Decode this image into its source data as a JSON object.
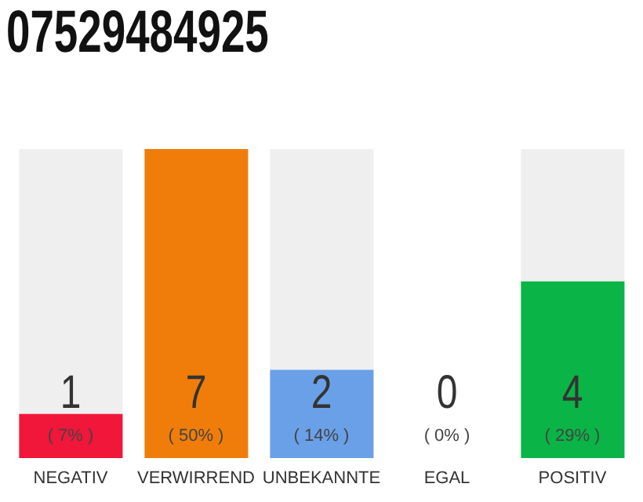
{
  "chart_data": {
    "type": "bar",
    "title": "07529484925",
    "categories": [
      "NEGATIV",
      "VERWIRREND",
      "UNBEKANNTE",
      "EGAL",
      "POSITIV"
    ],
    "values": [
      1,
      7,
      2,
      0,
      4
    ],
    "colors": [
      "#f0173a",
      "#f07d0a",
      "#6aa0e8",
      "#a0a0a0",
      "#0ab446"
    ],
    "value_labels": [
      "1",
      "7",
      "2",
      "0",
      "4"
    ],
    "annotations": [
      "( 7% )",
      "( 50% )",
      "( 14% )",
      "( 0% )",
      "( 29% )"
    ],
    "grid": false,
    "legend": false
  }
}
